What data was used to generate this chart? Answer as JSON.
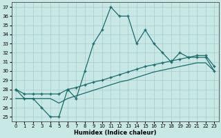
{
  "xlabel": "Humidex (Indice chaleur)",
  "background_color": "#c8e8e5",
  "line_color": "#1a6b6b",
  "xlim": [
    -0.5,
    23.5
  ],
  "ylim": [
    24.5,
    37.5
  ],
  "yticks": [
    25,
    26,
    27,
    28,
    29,
    30,
    31,
    32,
    33,
    34,
    35,
    36,
    37
  ],
  "xticks": [
    0,
    1,
    2,
    3,
    4,
    5,
    6,
    7,
    8,
    9,
    10,
    11,
    12,
    13,
    14,
    15,
    16,
    17,
    18,
    19,
    20,
    21,
    22,
    23
  ],
  "line1_x": [
    0,
    1,
    2,
    3,
    4,
    5,
    6,
    7,
    8,
    9,
    10,
    11,
    12,
    13,
    14,
    15,
    16,
    17,
    18,
    19,
    20,
    21,
    22,
    23
  ],
  "line1_y": [
    28,
    27,
    27,
    26,
    25,
    25,
    28,
    27,
    30,
    33,
    34.5,
    37,
    36,
    36,
    33,
    34.5,
    33,
    32,
    31,
    32,
    31.5,
    31.5,
    31.5,
    30
  ],
  "line2_x": [
    0,
    1,
    2,
    3,
    4,
    5,
    6,
    7,
    8,
    9,
    10,
    11,
    12,
    13,
    14,
    15,
    16,
    17,
    18,
    19,
    20,
    21,
    22,
    23
  ],
  "line2_y": [
    28,
    27.5,
    27.5,
    27.5,
    27.5,
    27.5,
    28,
    28.2,
    28.5,
    28.8,
    29,
    29.3,
    29.6,
    29.9,
    30.2,
    30.5,
    30.7,
    30.9,
    31.1,
    31.3,
    31.5,
    31.7,
    31.7,
    30.5
  ],
  "line3_x": [
    0,
    1,
    2,
    3,
    4,
    5,
    6,
    7,
    8,
    9,
    10,
    11,
    12,
    13,
    14,
    15,
    16,
    17,
    18,
    19,
    20,
    21,
    22,
    23
  ],
  "line3_y": [
    27,
    27,
    27,
    27,
    27,
    26.5,
    27,
    27.3,
    27.6,
    27.9,
    28.2,
    28.5,
    28.8,
    29.0,
    29.3,
    29.6,
    29.9,
    30.1,
    30.3,
    30.5,
    30.7,
    30.9,
    30.9,
    30.0
  ]
}
